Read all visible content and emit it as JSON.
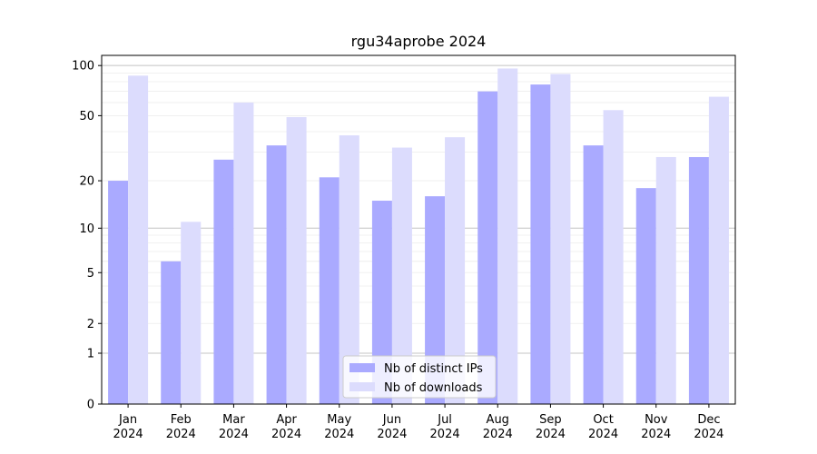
{
  "chart_data": {
    "type": "bar",
    "title": "rgu34aprobe 2024",
    "xlabel": "",
    "ylabel": "",
    "y_scale": "symlog",
    "ylim": [
      0,
      115
    ],
    "y_ticks": [
      0,
      1,
      2,
      5,
      10,
      20,
      50,
      100
    ],
    "grid": "horizontal",
    "legend_position": "bottom-center",
    "categories": [
      "Jan\n2024",
      "Feb\n2024",
      "Mar\n2024",
      "Apr\n2024",
      "May\n2024",
      "Jun\n2024",
      "Jul\n2024",
      "Aug\n2024",
      "Sep\n2024",
      "Oct\n2024",
      "Nov\n2024",
      "Dec\n2024"
    ],
    "series": [
      {
        "name": "Nb of distinct IPs",
        "color": "#aaaaff",
        "values": [
          20,
          6,
          27,
          33,
          21,
          15,
          16,
          70,
          77,
          33,
          18,
          28
        ]
      },
      {
        "name": "Nb of downloads",
        "color": "#dcdcfd",
        "values": [
          87,
          11,
          60,
          49,
          38,
          32,
          37,
          96,
          89,
          54,
          28,
          65
        ]
      }
    ]
  }
}
